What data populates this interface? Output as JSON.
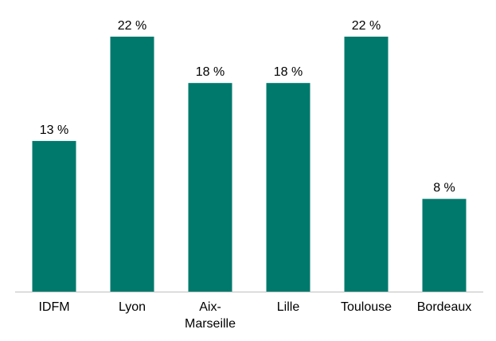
{
  "chart_data": {
    "type": "bar",
    "categories": [
      "IDFM",
      "Lyon",
      "Aix-Marseille",
      "Lille",
      "Toulouse",
      "Bordeaux"
    ],
    "values": [
      13,
      22,
      18,
      18,
      22,
      8
    ],
    "value_labels": [
      "13 %",
      "22 %",
      "18 %",
      "18 %",
      "22 %",
      "8 %"
    ],
    "color": "#00796d"
  }
}
